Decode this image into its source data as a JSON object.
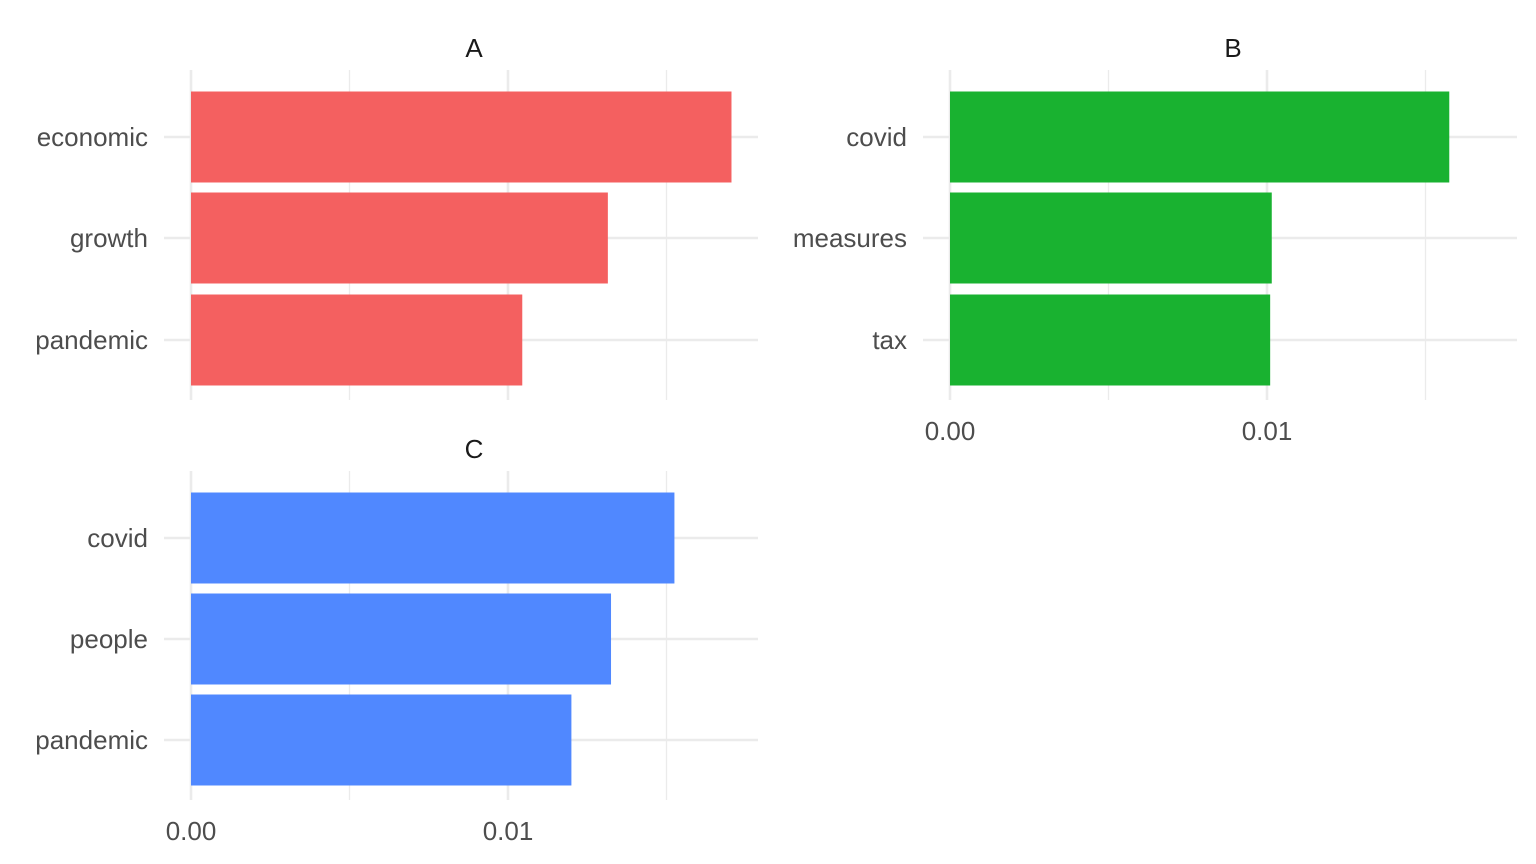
{
  "chart_data": [
    {
      "type": "bar",
      "orientation": "horizontal",
      "panel": "A",
      "categories": [
        "economic",
        "growth",
        "pandemic"
      ],
      "values": [
        0.01705,
        0.01315,
        0.01045
      ],
      "color": "#F46060",
      "xlim": [
        0,
        0.0179
      ],
      "xticks": [],
      "grid": true
    },
    {
      "type": "bar",
      "orientation": "horizontal",
      "panel": "B",
      "categories": [
        "covid",
        "measures",
        "tax"
      ],
      "values": [
        0.01575,
        0.01015,
        0.0101
      ],
      "color": "#19B230",
      "xlim": [
        0,
        0.0179
      ],
      "xticks": [
        "0.00",
        "0.01"
      ],
      "grid": true
    },
    {
      "type": "bar",
      "orientation": "horizontal",
      "panel": "C",
      "categories": [
        "covid",
        "people",
        "pandemic"
      ],
      "values": [
        0.01525,
        0.01325,
        0.012
      ],
      "color": "#5088FF",
      "xlim": [
        0,
        0.0179
      ],
      "xticks": [
        "0.00",
        "0.01"
      ],
      "grid": true
    }
  ]
}
